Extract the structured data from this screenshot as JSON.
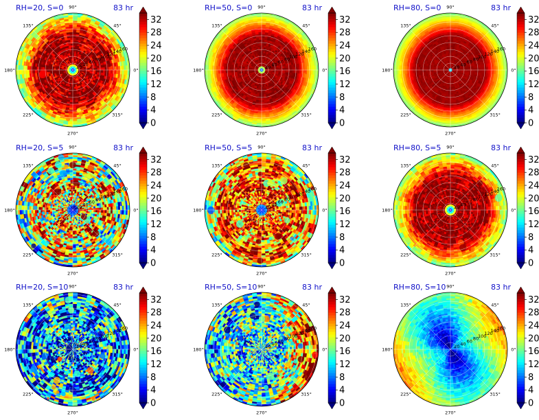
{
  "chart_data": [
    {
      "type": "heatmap",
      "projection": "polar",
      "title": "RH=20, S=0",
      "time": "83 hr",
      "field": "ring",
      "core": "small-blue",
      "pattern": "solid-red-core-yellow-edge",
      "noise": 0.55,
      "angle_ticks": [
        "0°",
        "45°",
        "90°",
        "135°",
        "180°",
        "225°",
        "270°",
        "315°"
      ],
      "radial_ticks": [
        "20",
        "40",
        "60",
        "80",
        "100",
        "120",
        "140",
        "160"
      ],
      "colorbar": {
        "ticks": [
          "0",
          "4",
          "8",
          "12",
          "16",
          "20",
          "24",
          "28",
          "32"
        ],
        "range": [
          0,
          34
        ],
        "colormap": "jet",
        "extend": "both"
      }
    },
    {
      "type": "heatmap",
      "projection": "polar",
      "title": "RH=50, S=0",
      "time": "83 hr",
      "field": "ring",
      "core": "tiny-blue",
      "pattern": "smooth-red-disk",
      "noise": 0.15,
      "angle_ticks": [
        "0°",
        "45°",
        "90°",
        "135°",
        "180°",
        "225°",
        "270°",
        "315°"
      ],
      "radial_ticks": [
        "20",
        "40",
        "60",
        "80",
        "100",
        "120",
        "140",
        "160"
      ],
      "colorbar": {
        "ticks": [
          "0",
          "4",
          "8",
          "12",
          "16",
          "20",
          "24",
          "28",
          "32"
        ],
        "range": [
          0,
          34
        ],
        "colormap": "jet",
        "extend": "both"
      }
    },
    {
      "type": "heatmap",
      "projection": "polar",
      "title": "RH=80, S=0",
      "time": "83 hr",
      "field": "ring",
      "core": "dot",
      "pattern": "smooth-red-disk",
      "noise": 0.08,
      "angle_ticks": [
        "0°",
        "45°",
        "90°",
        "135°",
        "180°",
        "225°",
        "270°",
        "315°"
      ],
      "radial_ticks": [
        "20",
        "40",
        "60",
        "80",
        "100",
        "120",
        "140",
        "160"
      ],
      "colorbar": {
        "ticks": [
          "0",
          "4",
          "8",
          "12",
          "16",
          "20",
          "24",
          "28",
          "32"
        ],
        "range": [
          0,
          34
        ],
        "colormap": "jet",
        "extend": "both"
      }
    },
    {
      "type": "heatmap",
      "projection": "polar",
      "title": "RH=20, S=5",
      "time": "83 hr",
      "field": "mixed",
      "core": "blue-eye",
      "pattern": "patchy-orange-cyan",
      "noise": 0.9,
      "angle_ticks": [
        "0°",
        "45°",
        "90°",
        "135°",
        "180°",
        "225°",
        "270°",
        "315°"
      ],
      "radial_ticks": [
        "20",
        "40",
        "60",
        "80",
        "100",
        "120",
        "140",
        "160"
      ],
      "colorbar": {
        "ticks": [
          "0",
          "4",
          "8",
          "12",
          "16",
          "20",
          "24",
          "28",
          "32"
        ],
        "range": [
          0,
          34
        ],
        "colormap": "jet",
        "extend": "both"
      }
    },
    {
      "type": "heatmap",
      "projection": "polar",
      "title": "RH=50, S=5",
      "time": "83 hr",
      "field": "mixed-strong",
      "core": "blue-eye",
      "pattern": "patchy-red-orange",
      "noise": 0.8,
      "angle_ticks": [
        "0°",
        "45°",
        "90°",
        "135°",
        "180°",
        "225°",
        "270°",
        "315°"
      ],
      "radial_ticks": [
        "20",
        "40",
        "60",
        "80",
        "100",
        "120",
        "140",
        "160"
      ],
      "colorbar": {
        "ticks": [
          "0",
          "4",
          "8",
          "12",
          "16",
          "20",
          "24",
          "28",
          "32"
        ],
        "range": [
          0,
          34
        ],
        "colormap": "jet",
        "extend": "both"
      }
    },
    {
      "type": "heatmap",
      "projection": "polar",
      "title": "RH=80, S=5",
      "time": "83 hr",
      "field": "ring",
      "core": "small-blue",
      "pattern": "red-disk-orange-edge",
      "noise": 0.4,
      "angle_ticks": [
        "0°",
        "45°",
        "90°",
        "135°",
        "180°",
        "225°",
        "270°",
        "315°"
      ],
      "radial_ticks": [
        "20",
        "40",
        "60",
        "80",
        "100",
        "120",
        "140",
        "160"
      ],
      "colorbar": {
        "ticks": [
          "0",
          "4",
          "8",
          "12",
          "16",
          "20",
          "24",
          "28",
          "32"
        ],
        "range": [
          0,
          34
        ],
        "colormap": "jet",
        "extend": "both"
      }
    },
    {
      "type": "heatmap",
      "projection": "polar",
      "title": "RH=20, S=10",
      "time": "83 hr",
      "field": "weak",
      "core": "none",
      "pattern": "blue-cyan-patches",
      "noise": 0.9,
      "angle_ticks": [
        "0°",
        "45°",
        "90°",
        "135°",
        "180°",
        "225°",
        "270°",
        "315°"
      ],
      "radial_ticks": [
        "20",
        "40",
        "60",
        "80",
        "100",
        "120",
        "140",
        "160"
      ],
      "colorbar": {
        "ticks": [
          "0",
          "4",
          "8",
          "12",
          "16",
          "20",
          "24",
          "28",
          "32"
        ],
        "range": [
          0,
          34
        ],
        "colormap": "jet",
        "extend": "both"
      }
    },
    {
      "type": "heatmap",
      "projection": "polar",
      "title": "RH=50, S=10",
      "time": "83 hr",
      "field": "weak-mid",
      "core": "none",
      "pattern": "cyan-green-with-orange-east",
      "noise": 0.9,
      "angle_ticks": [
        "0°",
        "45°",
        "90°",
        "135°",
        "180°",
        "225°",
        "270°",
        "315°"
      ],
      "radial_ticks": [
        "20",
        "40",
        "60",
        "80",
        "100",
        "120",
        "140",
        "160"
      ],
      "colorbar": {
        "ticks": [
          "0",
          "4",
          "8",
          "12",
          "16",
          "20",
          "24",
          "28",
          "32"
        ],
        "range": [
          0,
          34
        ],
        "colormap": "jet",
        "extend": "both"
      }
    },
    {
      "type": "heatmap",
      "projection": "polar",
      "title": "RH=80, S=10",
      "time": "83 hr",
      "field": "inverse",
      "core": "dark-blue",
      "pattern": "blue-core-cyan-yellow-edge",
      "noise": 0.35,
      "angle_ticks": [
        "0°",
        "45°",
        "90°",
        "135°",
        "180°",
        "225°",
        "270°",
        "315°"
      ],
      "radial_ticks": [
        "20",
        "40",
        "60",
        "80",
        "100",
        "120",
        "140",
        "160"
      ],
      "colorbar": {
        "ticks": [
          "0",
          "4",
          "8",
          "12",
          "16",
          "20",
          "24",
          "28",
          "32"
        ],
        "range": [
          0,
          34
        ],
        "colormap": "jet",
        "extend": "both"
      }
    }
  ]
}
